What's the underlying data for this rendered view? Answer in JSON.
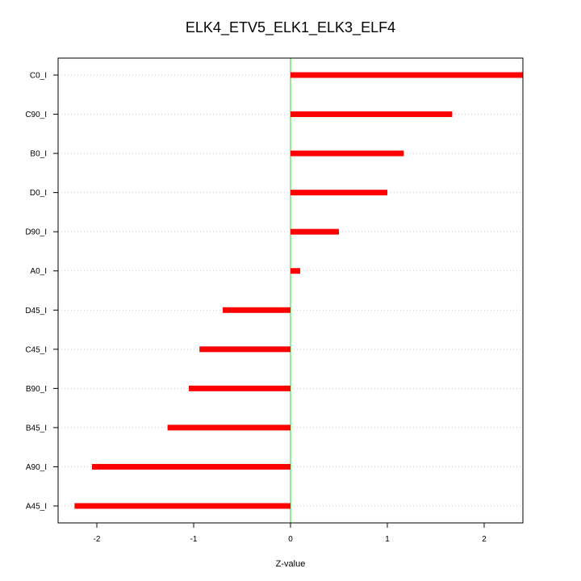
{
  "chart_data": {
    "type": "bar",
    "orientation": "horizontal",
    "title": "ELK4_ETV5_ELK1_ELK3_ELF4",
    "xlabel": "Z-value",
    "ylabel": "",
    "xlim": [
      -2.4,
      2.4
    ],
    "xticks": [
      -2,
      -1,
      0,
      1,
      2
    ],
    "grid": "horizontal dotted",
    "zero_line_color": "#90ee90",
    "bar_color": "#ff0000",
    "categories": [
      "C0_I",
      "C90_I",
      "B0_I",
      "D0_I",
      "D90_I",
      "A0_I",
      "D45_I",
      "C45_I",
      "B90_I",
      "B45_I",
      "A90_I",
      "A45_I"
    ],
    "values": [
      2.4,
      1.67,
      1.17,
      1.0,
      0.5,
      0.1,
      -0.7,
      -0.94,
      -1.05,
      -1.27,
      -2.05,
      -2.23
    ]
  }
}
